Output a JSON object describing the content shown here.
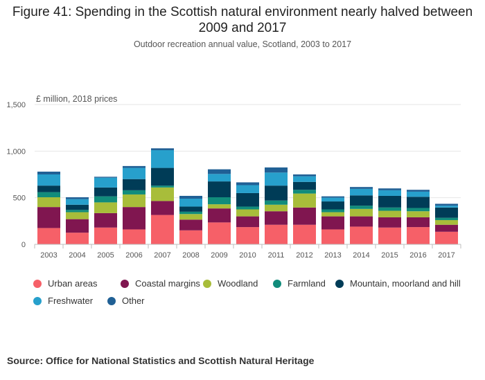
{
  "title": "Figure 41: Spending in the Scottish natural environment nearly halved between 2009 and 2017",
  "subtitle": "Outdoor recreation annual value, Scotland, 2003 to 2017",
  "source": "Source: Office for National Statistics and Scottish Natural Heritage",
  "chart_data": {
    "type": "bar",
    "stacked": true,
    "title": "Figure 41: Spending in the Scottish natural environment nearly halved between 2009 and 2017",
    "subtitle": "Outdoor recreation annual value, Scotland, 2003 to 2017",
    "ylabel": "£ million, 2018 prices",
    "ylim": [
      0,
      1500
    ],
    "yticks": [
      0,
      500,
      1000,
      1500
    ],
    "ytick_labels": [
      "0",
      "500",
      "1,000",
      "1,500"
    ],
    "grid": true,
    "legend_position": "bottom",
    "categories": [
      "2003",
      "2004",
      "2005",
      "2006",
      "2007",
      "2008",
      "2009",
      "2010",
      "2011",
      "2012",
      "2013",
      "2014",
      "2015",
      "2016",
      "2017"
    ],
    "series": [
      {
        "name": "Urban areas",
        "color": "#f66068",
        "values": [
          175,
          125,
          180,
          160,
          315,
          150,
          235,
          185,
          210,
          210,
          160,
          190,
          180,
          185,
          135
        ]
      },
      {
        "name": "Coastal margins",
        "color": "#801650",
        "values": [
          225,
          145,
          155,
          240,
          150,
          115,
          150,
          115,
          145,
          185,
          140,
          110,
          110,
          105,
          75
        ]
      },
      {
        "name": "Woodland",
        "color": "#a8bd3a",
        "values": [
          105,
          75,
          115,
          135,
          145,
          60,
          45,
          75,
          70,
          150,
          45,
          80,
          70,
          65,
          50
        ]
      },
      {
        "name": "Farmland",
        "color": "#118c7b",
        "values": [
          55,
          25,
          65,
          45,
          20,
          25,
          75,
          30,
          45,
          40,
          30,
          35,
          35,
          35,
          25
        ]
      },
      {
        "name": "Mountain, moorland and hill",
        "color": "#003c57",
        "values": [
          70,
          55,
          95,
          120,
          190,
          55,
          170,
          145,
          160,
          85,
          85,
          110,
          125,
          120,
          110
        ]
      },
      {
        "name": "Freshwater",
        "color": "#27a0cc",
        "values": [
          120,
          60,
          105,
          120,
          190,
          85,
          80,
          85,
          140,
          60,
          40,
          70,
          60,
          55,
          20
        ]
      },
      {
        "name": "Other",
        "color": "#206095",
        "values": [
          30,
          20,
          10,
          20,
          20,
          30,
          50,
          30,
          55,
          20,
          15,
          20,
          20,
          20,
          20
        ]
      }
    ]
  }
}
